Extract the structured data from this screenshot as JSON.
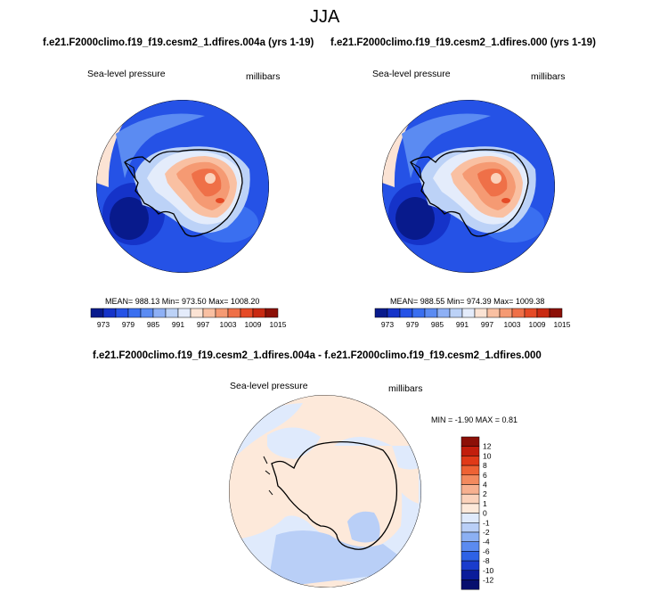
{
  "season": "JJA",
  "panels": [
    {
      "case": "f.e21.F2000climo.f19_f19.cesm2_1.dfires.004a (yrs 1-19)",
      "variable": "Sea-level pressure",
      "units": "millibars",
      "stats": "MEAN= 988.13  Min= 973.50  Max= 1008.20"
    },
    {
      "case": "f.e21.F2000climo.f19_f19.cesm2_1.dfires.000 (yrs 1-19)",
      "variable": "Sea-level pressure",
      "units": "millibars",
      "stats": "MEAN= 988.55  Min= 974.39  Max= 1009.38"
    }
  ],
  "diff": {
    "title": "f.e21.F2000climo.f19_f19.cesm2_1.dfires.004a - f.e21.F2000climo.f19_f19.cesm2_1.dfires.000",
    "variable": "Sea-level pressure",
    "units": "millibars",
    "stats": "MIN =  -1.90 MAX =    0.81"
  },
  "colorbar_top": {
    "labels": [
      "973",
      "979",
      "985",
      "991",
      "997",
      "1003",
      "1009",
      "1015"
    ],
    "colors": [
      "#081a8c",
      "#1533c9",
      "#2552e6",
      "#3a6ff0",
      "#5b8bf2",
      "#8eb0f5",
      "#bcd2f7",
      "#e4ecfb",
      "#fbe3d4",
      "#f9c0a2",
      "#f59a73",
      "#ef7048",
      "#e54a26",
      "#c92a12",
      "#8c1007"
    ]
  },
  "colorbar_diff": {
    "labels": [
      "12",
      "10",
      "8",
      "6",
      "4",
      "2",
      "1",
      "0",
      "-1",
      "-2",
      "-4",
      "-6",
      "-8",
      "-10",
      "-12"
    ],
    "colors": [
      "#8c1007",
      "#c21e0c",
      "#e03a18",
      "#ee6234",
      "#f38a5e",
      "#f7b08f",
      "#fbd2bb",
      "#fde9da",
      "#dfeafc",
      "#b9cff7",
      "#8cb0f3",
      "#5b8bf0",
      "#2e62e6",
      "#1a3ccc",
      "#0a1c9a",
      "#070f6e"
    ]
  }
}
